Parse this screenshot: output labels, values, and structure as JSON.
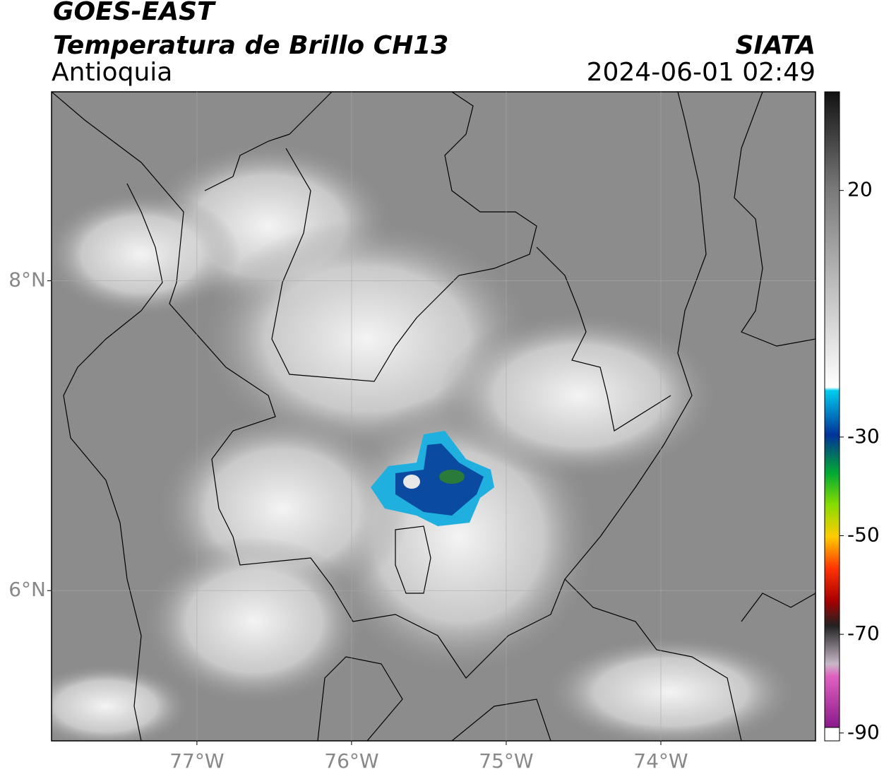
{
  "header": {
    "title": "GOES-EAST",
    "subtitle": "Temperatura de Brillo CH13",
    "region": "Antioquia",
    "source": "SIATA",
    "datetime": "2024-06-01 02:49"
  },
  "map": {
    "xlim": [
      -77.94,
      -73.0
    ],
    "ylim": [
      5.03,
      9.22
    ],
    "xticks": [
      {
        "value": -77,
        "label": "77°W"
      },
      {
        "value": -76,
        "label": "76°W"
      },
      {
        "value": -75,
        "label": "75°W"
      },
      {
        "value": -74,
        "label": "74°W"
      }
    ],
    "yticks": [
      {
        "value": 8,
        "label": "8°N"
      },
      {
        "value": 6,
        "label": "6°N"
      }
    ],
    "grid": true
  },
  "colorbar": {
    "lim": [
      -91.6,
      40
    ],
    "ticks": [
      20,
      -30,
      -50,
      -70,
      -90
    ]
  }
}
